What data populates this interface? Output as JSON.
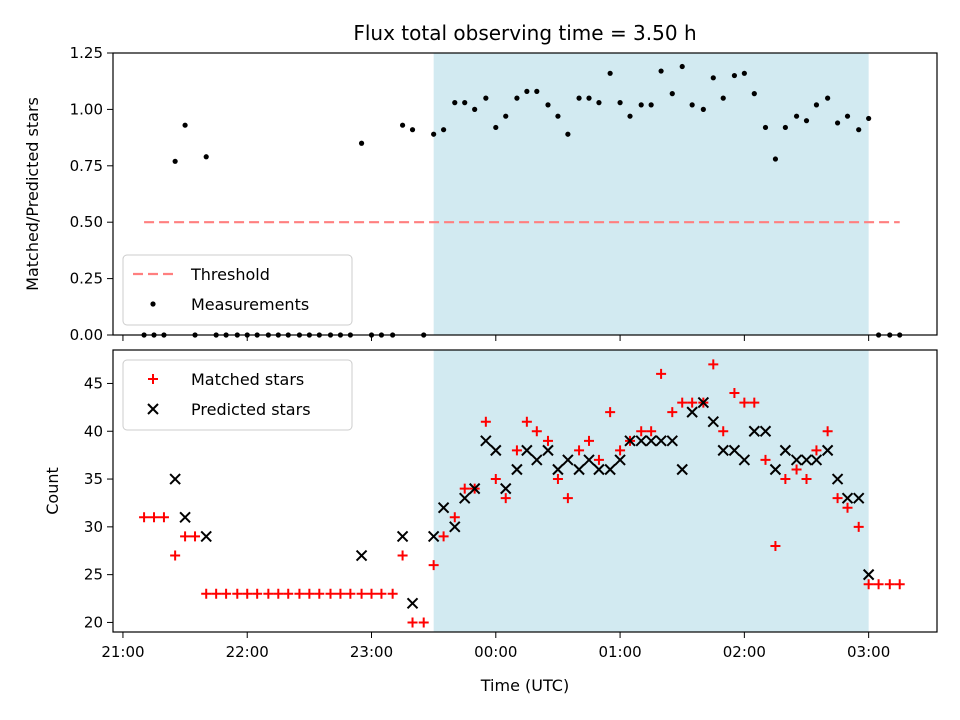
{
  "chart_data": {
    "type": "scatter",
    "title": "Flux total observing time = 3.50 h",
    "xlabel": "Time (UTC)",
    "x_ticks": [
      "21:00",
      "22:00",
      "23:00",
      "00:00",
      "01:00",
      "02:00",
      "03:00"
    ],
    "x_tick_hours": [
      21,
      22,
      23,
      24,
      25,
      26,
      27
    ],
    "xlim_hours": [
      20.92,
      27.55
    ],
    "shaded_region_hours": [
      23.5,
      27.0
    ],
    "colors": {
      "shade": "#add8e6",
      "threshold": "#ff7f7f",
      "measurements": "#000000",
      "matched": "#ff0000",
      "predicted": "#000000"
    },
    "panels": [
      {
        "ylabel": "Matched/Predicted stars",
        "ylim": [
          0,
          1.25
        ],
        "y_ticks": [
          "0.00",
          "0.25",
          "0.50",
          "0.75",
          "1.00",
          "1.25"
        ],
        "legend_position": "bottom-left",
        "threshold": {
          "name": "Threshold",
          "value": 0.5,
          "x_range_hours": [
            21.17,
            27.25
          ]
        },
        "series": [
          {
            "name": "Measurements",
            "marker": "dot",
            "x_hours": [
              21.17,
              21.25,
              21.33,
              21.42,
              21.5,
              21.58,
              21.67,
              21.75,
              21.83,
              21.92,
              22.0,
              22.08,
              22.17,
              22.25,
              22.33,
              22.42,
              22.5,
              22.58,
              22.67,
              22.75,
              22.83,
              22.92,
              23.0,
              23.08,
              23.17,
              23.25,
              23.33,
              23.42,
              23.5,
              23.58,
              23.67,
              23.75,
              23.83,
              23.92,
              24.0,
              24.08,
              24.17,
              24.25,
              24.33,
              24.42,
              24.5,
              24.58,
              24.67,
              24.75,
              24.83,
              24.92,
              25.0,
              25.08,
              25.17,
              25.25,
              25.33,
              25.42,
              25.5,
              25.58,
              25.67,
              25.75,
              25.83,
              25.92,
              26.0,
              26.08,
              26.17,
              26.25,
              26.33,
              26.42,
              26.5,
              26.58,
              26.67,
              26.75,
              26.83,
              26.92,
              27.0,
              27.08,
              27.17,
              27.25
            ],
            "values": [
              0,
              0,
              0,
              0.77,
              0.93,
              0,
              0.79,
              0,
              0,
              0,
              0,
              0,
              0,
              0,
              0,
              0,
              0,
              0,
              0,
              0,
              0,
              0.85,
              0,
              0,
              0,
              0.93,
              0.91,
              0,
              0.89,
              0.91,
              1.03,
              1.03,
              1.0,
              1.05,
              0.92,
              0.97,
              1.05,
              1.08,
              1.08,
              1.02,
              0.97,
              0.89,
              1.05,
              1.05,
              1.03,
              1.16,
              1.03,
              0.97,
              1.02,
              1.02,
              1.17,
              1.07,
              1.19,
              1.02,
              1.0,
              1.14,
              1.05,
              1.15,
              1.16,
              1.07,
              0.92,
              0.78,
              0.92,
              0.97,
              0.95,
              1.02,
              1.05,
              0.94,
              0.97,
              0.91,
              0.96,
              0,
              0,
              0
            ]
          }
        ]
      },
      {
        "ylabel": "Count",
        "ylim": [
          19,
          48.5
        ],
        "y_ticks": [
          "20",
          "25",
          "30",
          "35",
          "40",
          "45"
        ],
        "legend_position": "top-left",
        "series": [
          {
            "name": "Matched stars",
            "marker": "plus",
            "x_hours": [
              21.17,
              21.25,
              21.33,
              21.42,
              21.5,
              21.58,
              21.67,
              21.75,
              21.83,
              21.92,
              22.0,
              22.08,
              22.17,
              22.25,
              22.33,
              22.42,
              22.5,
              22.58,
              22.67,
              22.75,
              22.83,
              22.92,
              23.0,
              23.08,
              23.17,
              23.25,
              23.33,
              23.42,
              23.5,
              23.58,
              23.67,
              23.75,
              23.83,
              23.92,
              24.0,
              24.08,
              24.17,
              24.25,
              24.33,
              24.42,
              24.5,
              24.58,
              24.67,
              24.75,
              24.83,
              24.92,
              25.0,
              25.08,
              25.17,
              25.25,
              25.33,
              25.42,
              25.5,
              25.58,
              25.67,
              25.75,
              25.83,
              25.92,
              26.0,
              26.08,
              26.17,
              26.25,
              26.33,
              26.42,
              26.5,
              26.58,
              26.67,
              26.75,
              26.83,
              26.92,
              27.0,
              27.08,
              27.17,
              27.25
            ],
            "values": [
              31,
              31,
              31,
              27,
              29,
              29,
              23,
              23,
              23,
              23,
              23,
              23,
              23,
              23,
              23,
              23,
              23,
              23,
              23,
              23,
              23,
              23,
              23,
              23,
              23,
              27,
              20,
              20,
              26,
              29,
              31,
              34,
              34,
              41,
              35,
              33,
              38,
              41,
              40,
              39,
              35,
              33,
              38,
              39,
              37,
              42,
              38,
              39,
              40,
              40,
              46,
              42,
              43,
              43,
              43,
              47,
              40,
              44,
              43,
              43,
              37,
              28,
              35,
              36,
              35,
              38,
              40,
              33,
              32,
              30,
              24,
              24,
              24,
              24
            ]
          },
          {
            "name": "Predicted stars",
            "marker": "cross",
            "x_hours": [
              21.42,
              21.5,
              21.67,
              22.92,
              23.25,
              23.33,
              23.5,
              23.58,
              23.67,
              23.75,
              23.83,
              23.92,
              24.0,
              24.08,
              24.17,
              24.25,
              24.33,
              24.42,
              24.5,
              24.58,
              24.67,
              24.75,
              24.83,
              24.92,
              25.0,
              25.08,
              25.17,
              25.25,
              25.33,
              25.42,
              25.5,
              25.58,
              25.67,
              25.75,
              25.83,
              25.92,
              26.0,
              26.08,
              26.17,
              26.25,
              26.33,
              26.42,
              26.5,
              26.58,
              26.67,
              26.75,
              26.83,
              26.92,
              27.0
            ],
            "values": [
              35,
              31,
              29,
              27,
              29,
              22,
              29,
              32,
              30,
              33,
              34,
              39,
              38,
              34,
              36,
              38,
              37,
              38,
              36,
              37,
              36,
              37,
              36,
              36,
              37,
              39,
              39,
              39,
              39,
              39,
              36,
              42,
              43,
              41,
              38,
              38,
              37,
              40,
              40,
              36,
              38,
              37,
              37,
              37,
              38,
              35,
              33,
              33,
              25
            ]
          }
        ]
      }
    ]
  }
}
